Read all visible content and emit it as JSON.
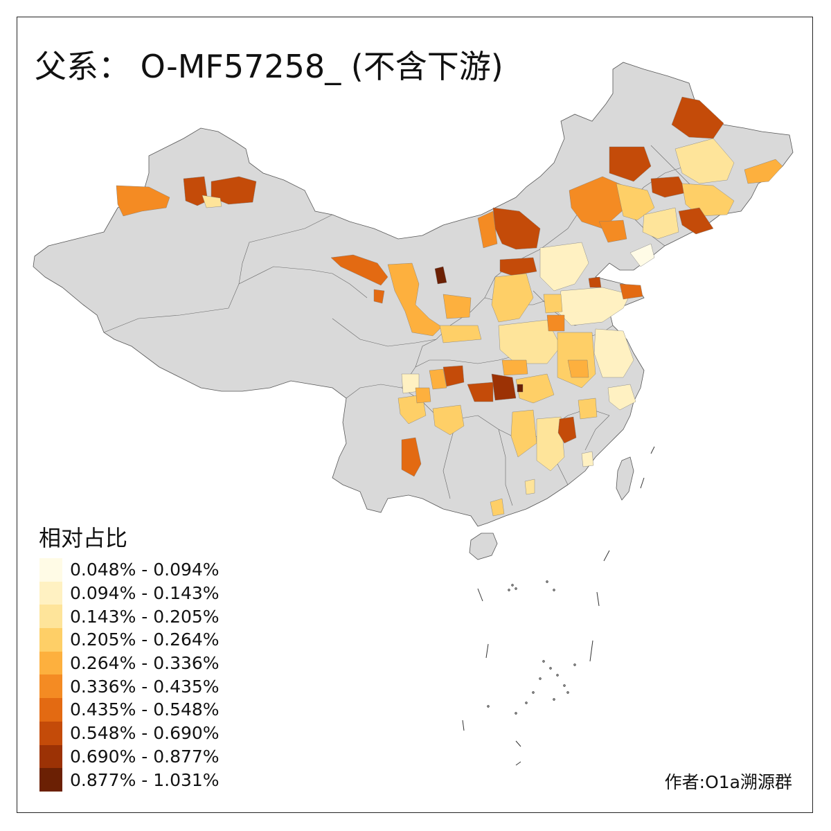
{
  "title": "父系： O-MF57258_ (不含下游)",
  "legend": {
    "title": "相对占比",
    "items": [
      {
        "label": "0.048% - 0.094%",
        "color": "#fffbe6"
      },
      {
        "label": "0.094% - 0.143%",
        "color": "#fff1c2"
      },
      {
        "label": "0.143% - 0.205%",
        "color": "#fee49a"
      },
      {
        "label": "0.205% - 0.264%",
        "color": "#fecf67"
      },
      {
        "label": "0.264% - 0.336%",
        "color": "#fdb03e"
      },
      {
        "label": "0.336% - 0.435%",
        "color": "#f48b23"
      },
      {
        "label": "0.435% - 0.548%",
        "color": "#e36a12"
      },
      {
        "label": "0.548% - 0.690%",
        "color": "#c44b09"
      },
      {
        "label": "0.690% - 0.877%",
        "color": "#9c3205"
      },
      {
        "label": "0.877% - 1.031%",
        "color": "#6b2004"
      }
    ]
  },
  "credit": "作者:O1a溯源群",
  "base_color": "#d9d9d9"
}
